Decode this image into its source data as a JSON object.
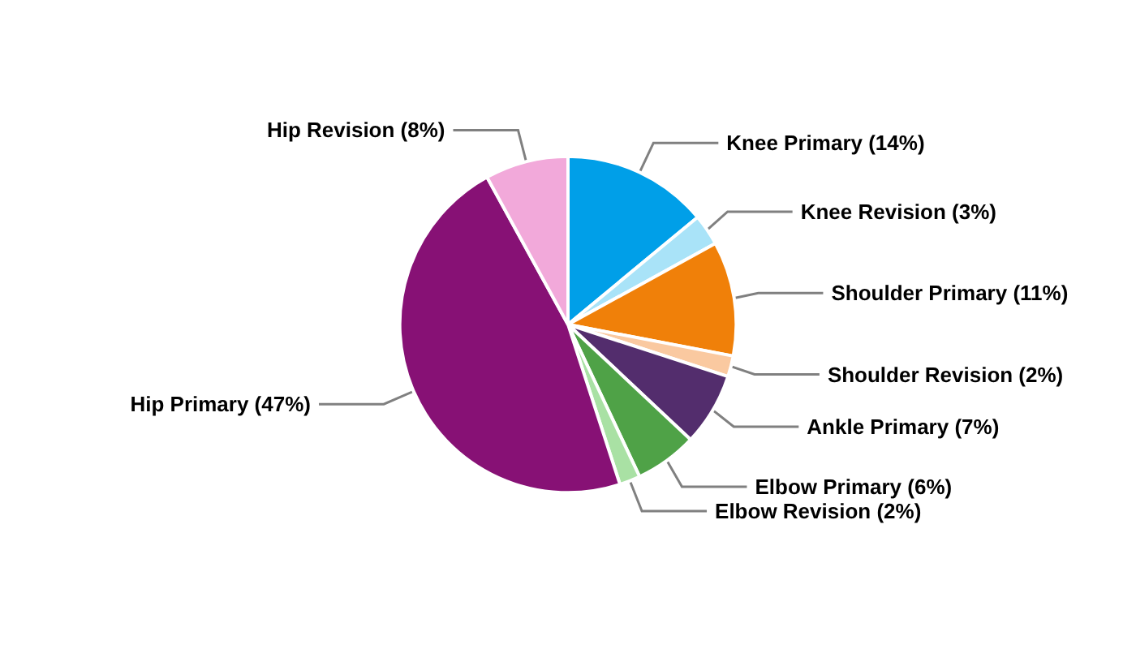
{
  "chart_data": {
    "type": "pie",
    "categories": [
      "Knee Primary (14%)",
      "Knee Revision (3%)",
      "Shoulder Primary (11%)",
      "Shoulder Revision (2%)",
      "Ankle Primary (7%)",
      "Elbow Primary (6%)",
      "Elbow Revision (2%)",
      "Hip Primary (47%)",
      "Hip Revision (8%)"
    ],
    "values": [
      14,
      3,
      11,
      2,
      7,
      6,
      2,
      47,
      8
    ],
    "colors": [
      "#009fe8",
      "#a9e3f8",
      "#f08009",
      "#fac9a0",
      "#532d6d",
      "#4fa247",
      "#a9e1a4",
      "#871175",
      "#f2a9da"
    ],
    "legend": false
  }
}
